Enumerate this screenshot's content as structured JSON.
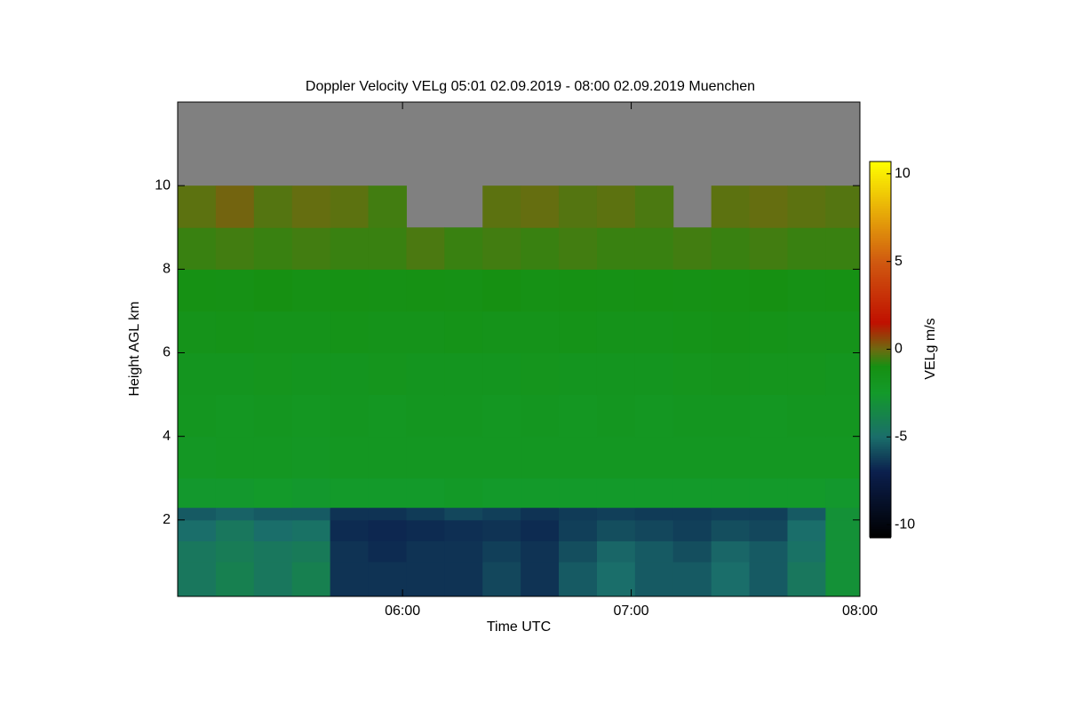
{
  "chart_data": {
    "type": "heatmap",
    "title": "Doppler Velocity VELg   05:01 02.09.2019 - 08:00 02.09.2019 Muenchen",
    "xlabel": "Time UTC",
    "ylabel": "Height AGL km",
    "colorbar_label": "VELg m/s",
    "xlim": [
      301,
      480
    ],
    "xticks": [
      {
        "value": 360,
        "label": "06:00"
      },
      {
        "value": 420,
        "label": "07:00"
      },
      {
        "value": 480,
        "label": "08:00"
      }
    ],
    "ylim": [
      0.17,
      12.0
    ],
    "yticks": [
      2,
      4,
      6,
      8,
      10
    ],
    "clim": [
      -10.7,
      10.7
    ],
    "cticks": [
      -10,
      -5,
      0,
      5,
      10
    ],
    "missing_color": "#808080",
    "colormap": [
      {
        "value": -10.7,
        "color": "#000000"
      },
      {
        "value": -7,
        "color": "#0b1f4d"
      },
      {
        "value": -5,
        "color": "#1a6e6a"
      },
      {
        "value": -2.5,
        "color": "#139a2a"
      },
      {
        "value": -1,
        "color": "#169012"
      },
      {
        "value": 0,
        "color": "#6e6a10"
      },
      {
        "value": 1.5,
        "color": "#c01000"
      },
      {
        "value": 5,
        "color": "#d05a10"
      },
      {
        "value": 10.7,
        "color": "#ffff00"
      }
    ],
    "x": [
      301,
      311,
      321,
      331,
      341,
      351,
      361,
      371,
      381,
      391,
      401,
      411,
      421,
      431,
      441,
      451,
      461,
      471
    ],
    "y": [
      0.17,
      1,
      1.5,
      2,
      2.3,
      3,
      4,
      5,
      6,
      7,
      8,
      9,
      10,
      11
    ],
    "z": [
      [
        -4.5,
        -4,
        -4.5,
        -4,
        -6.5,
        -6.5,
        -6.5,
        -6.5,
        -6,
        -6.5,
        -5.5,
        -5,
        -5.5,
        -5.5,
        -5,
        -5.5,
        -4.5,
        -3
      ],
      [
        -4.5,
        -4.2,
        -4.5,
        -4.3,
        -6.5,
        -6.7,
        -6.5,
        -6.5,
        -6.2,
        -6.5,
        -5.8,
        -5.2,
        -5.5,
        -5.8,
        -5.2,
        -5.5,
        -4.8,
        -3
      ],
      [
        -5,
        -4.5,
        -5,
        -4.8,
        -6.7,
        -6.8,
        -6.7,
        -6.6,
        -6.5,
        -6.7,
        -6.2,
        -5.8,
        -6,
        -6.2,
        -5.8,
        -6,
        -5,
        -3
      ],
      [
        -5.5,
        -5.3,
        -5.5,
        -5.5,
        -6.5,
        -6.5,
        -6.3,
        -6,
        -6.2,
        -6.5,
        -6.3,
        -6.2,
        -6.3,
        -6.3,
        -6.2,
        -6.2,
        -5.5,
        -3
      ],
      [
        -2.6,
        -2.6,
        -2.5,
        -2.6,
        -2.5,
        -2.5,
        -2.5,
        -2.3,
        -2.5,
        -2.5,
        -2.5,
        -2.5,
        -2.5,
        -2.5,
        -2.5,
        -2.5,
        -2.5,
        -2.6
      ],
      [
        -2.1,
        -2,
        -2,
        -2.1,
        -2,
        -2,
        -2,
        -2,
        -2,
        -2,
        -2,
        -2,
        -2,
        -2,
        -2,
        -2,
        -2,
        -2
      ],
      [
        -1.9,
        -2,
        -1.9,
        -2,
        -1.9,
        -2,
        -1.9,
        -1.9,
        -2,
        -1.9,
        -2,
        -1.9,
        -2,
        -1.9,
        -1.9,
        -2,
        -1.9,
        -1.9
      ],
      [
        -1.8,
        -1.8,
        -1.7,
        -1.8,
        -1.8,
        -1.7,
        -1.8,
        -1.8,
        -1.8,
        -1.7,
        -1.8,
        -1.8,
        -1.8,
        -1.7,
        -1.6,
        -1.7,
        -1.7,
        -1.8
      ],
      [
        -1.5,
        -1.4,
        -1.5,
        -1.5,
        -1.4,
        -1.5,
        -1.5,
        -1.4,
        -1.5,
        -1.5,
        -1.4,
        -1.5,
        -1.5,
        -1.4,
        -1.3,
        -1.4,
        -1.5,
        -1.5
      ],
      [
        -1.1,
        -1.2,
        -1,
        -1.2,
        -1.1,
        -1.2,
        -1.1,
        -1.2,
        -1,
        -1.2,
        -1.1,
        -1.2,
        -1.1,
        -1.2,
        -1.1,
        -1,
        -1.2,
        -1.1
      ],
      [
        -0.6,
        -0.5,
        -0.6,
        -0.5,
        -0.6,
        -0.6,
        -0.4,
        -0.6,
        -0.5,
        -0.6,
        -0.5,
        -0.6,
        -0.6,
        -0.5,
        -0.6,
        -0.5,
        -0.6,
        -0.6
      ],
      [
        -0.2,
        0.1,
        -0.3,
        -0.1,
        -0.2,
        -0.5,
        null,
        null,
        -0.2,
        -0.1,
        -0.3,
        -0.2,
        -0.4,
        null,
        -0.2,
        -0.1,
        -0.2,
        -0.3
      ],
      [
        null,
        null,
        null,
        null,
        null,
        null,
        null,
        null,
        null,
        null,
        null,
        null,
        null,
        null,
        null,
        null,
        null,
        null
      ],
      [
        null,
        null,
        null,
        null,
        null,
        null,
        null,
        null,
        null,
        null,
        null,
        null,
        null,
        null,
        null,
        null,
        null,
        null
      ]
    ]
  }
}
